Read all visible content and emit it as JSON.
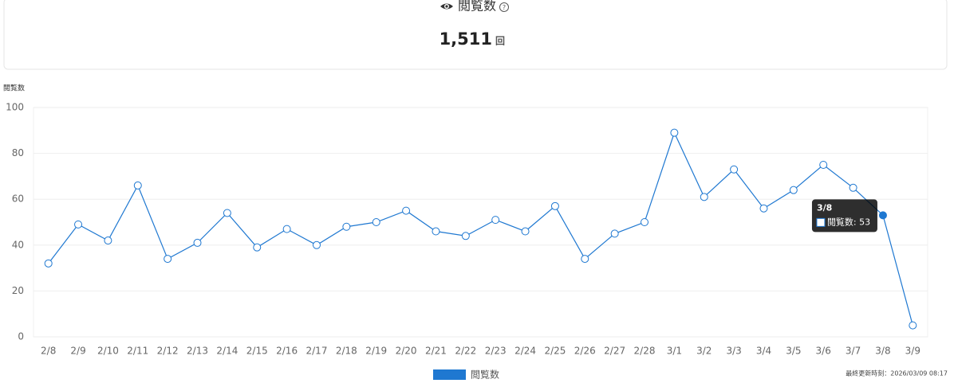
{
  "header": {
    "title": "閲覧数",
    "total": "1,511",
    "unit": "回"
  },
  "chart_data": {
    "type": "line",
    "y_label": "閲覧数",
    "categories": [
      "2/8",
      "2/9",
      "2/10",
      "2/11",
      "2/12",
      "2/13",
      "2/14",
      "2/15",
      "2/16",
      "2/17",
      "2/18",
      "2/19",
      "2/20",
      "2/21",
      "2/22",
      "2/23",
      "2/24",
      "2/25",
      "2/26",
      "2/27",
      "2/28",
      "3/1",
      "3/2",
      "3/3",
      "3/4",
      "3/5",
      "3/6",
      "3/7",
      "3/8",
      "3/9"
    ],
    "series": [
      {
        "name": "閲覧数",
        "color": "#1f78d1",
        "values": [
          32,
          49,
          42,
          66,
          34,
          41,
          54,
          39,
          47,
          40,
          48,
          50,
          55,
          46,
          44,
          51,
          46,
          57,
          34,
          45,
          50,
          89,
          61,
          73,
          56,
          64,
          75,
          65,
          53,
          5
        ]
      }
    ],
    "ylim": [
      0,
      100
    ],
    "yticks": [
      0,
      20,
      40,
      60,
      80,
      100
    ],
    "grid": true,
    "tooltip": {
      "title": "3/8",
      "text": "閲覧数: 53"
    }
  },
  "footer": "最終更新時刻：2026/03/09 08:17"
}
